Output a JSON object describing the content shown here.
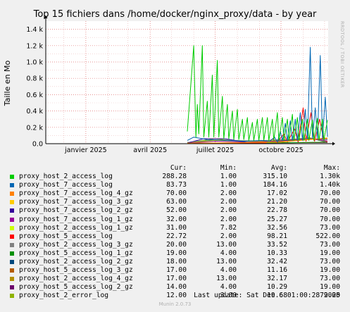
{
  "chart_data": {
    "type": "line",
    "title": "Top 15 fichiers dans /home/docker/nginx_proxy/data - by year",
    "ylabel": "Taille en Mo",
    "side_label": "RRDTOOL / TOBI OETIKER",
    "ylim": [
      0,
      1500
    ],
    "y_ticks": [
      {
        "v": 0,
        "label": "0.0"
      },
      {
        "v": 200,
        "label": "0.2 k"
      },
      {
        "v": 400,
        "label": "0.4 k"
      },
      {
        "v": 600,
        "label": "0.6 k"
      },
      {
        "v": 800,
        "label": "0.8 k"
      },
      {
        "v": 1000,
        "label": "1.0 k"
      },
      {
        "v": 1200,
        "label": "1.2 k"
      },
      {
        "v": 1400,
        "label": "1.4 k"
      }
    ],
    "x_range": [
      "2024-11-06",
      "2025-12-06"
    ],
    "x_ticks": [
      {
        "date": "2025-01-01",
        "label": "janvier 2025"
      },
      {
        "date": "2025-04-01",
        "label": "avril 2025"
      },
      {
        "date": "2025-07-01",
        "label": "juillet 2025"
      },
      {
        "date": "2025-10-01",
        "label": "octobre 2025"
      }
    ],
    "grid": true,
    "series": [
      {
        "name": "proxy_host_2_access_log",
        "color": "#00cc00",
        "cur": "288.28",
        "min": "1.00",
        "avg": "315.10",
        "max": "1.30k",
        "points": [
          [
            "2025-05-23",
            150
          ],
          [
            "2025-06-01",
            1200
          ],
          [
            "2025-06-04",
            80
          ],
          [
            "2025-06-06",
            480
          ],
          [
            "2025-06-08",
            120
          ],
          [
            "2025-06-13",
            1200
          ],
          [
            "2025-06-15",
            80
          ],
          [
            "2025-06-20",
            520
          ],
          [
            "2025-06-22",
            80
          ],
          [
            "2025-06-27",
            840
          ],
          [
            "2025-06-29",
            80
          ],
          [
            "2025-07-04",
            1020
          ],
          [
            "2025-07-06",
            80
          ],
          [
            "2025-07-11",
            580
          ],
          [
            "2025-07-13",
            60
          ],
          [
            "2025-07-18",
            480
          ],
          [
            "2025-07-20",
            60
          ],
          [
            "2025-07-25",
            400
          ],
          [
            "2025-07-27",
            50
          ],
          [
            "2025-08-01",
            420
          ],
          [
            "2025-08-03",
            50
          ],
          [
            "2025-08-08",
            300
          ],
          [
            "2025-08-10",
            50
          ],
          [
            "2025-08-15",
            320
          ],
          [
            "2025-08-17",
            40
          ],
          [
            "2025-08-22",
            260
          ],
          [
            "2025-08-24",
            40
          ],
          [
            "2025-08-29",
            300
          ],
          [
            "2025-08-31",
            40
          ],
          [
            "2025-09-05",
            320
          ],
          [
            "2025-09-07",
            40
          ],
          [
            "2025-09-12",
            320
          ],
          [
            "2025-09-14",
            40
          ],
          [
            "2025-09-19",
            300
          ],
          [
            "2025-09-21",
            40
          ],
          [
            "2025-09-26",
            380
          ],
          [
            "2025-09-28",
            40
          ],
          [
            "2025-10-03",
            320
          ],
          [
            "2025-10-05",
            40
          ],
          [
            "2025-10-10",
            300
          ],
          [
            "2025-10-12",
            40
          ],
          [
            "2025-10-17",
            360
          ],
          [
            "2025-10-19",
            40
          ],
          [
            "2025-10-24",
            320
          ],
          [
            "2025-10-26",
            40
          ],
          [
            "2025-10-31",
            300
          ],
          [
            "2025-11-02",
            40
          ],
          [
            "2025-11-07",
            300
          ],
          [
            "2025-11-09",
            40
          ],
          [
            "2025-11-14",
            290
          ],
          [
            "2025-11-16",
            40
          ],
          [
            "2025-11-21",
            310
          ],
          [
            "2025-11-23",
            40
          ],
          [
            "2025-11-28",
            300
          ],
          [
            "2025-11-30",
            40
          ],
          [
            "2025-12-05",
            288
          ]
        ]
      },
      {
        "name": "proxy_host_7_access_log",
        "color": "#0066b3",
        "cur": "83.73",
        "min": "1.00",
        "avg": "184.16",
        "max": "1.40k",
        "points": [
          [
            "2025-05-23",
            40
          ],
          [
            "2025-06-01",
            80
          ],
          [
            "2025-06-20",
            50
          ],
          [
            "2025-07-15",
            40
          ],
          [
            "2025-08-10",
            30
          ],
          [
            "2025-09-05",
            40
          ],
          [
            "2025-09-15",
            30
          ],
          [
            "2025-09-22",
            80
          ],
          [
            "2025-09-26",
            20
          ],
          [
            "2025-09-30",
            150
          ],
          [
            "2025-10-03",
            40
          ],
          [
            "2025-10-07",
            250
          ],
          [
            "2025-10-10",
            40
          ],
          [
            "2025-10-14",
            280
          ],
          [
            "2025-10-17",
            40
          ],
          [
            "2025-10-21",
            300
          ],
          [
            "2025-10-24",
            40
          ],
          [
            "2025-10-28",
            380
          ],
          [
            "2025-10-31",
            40
          ],
          [
            "2025-11-04",
            420
          ],
          [
            "2025-11-07",
            60
          ],
          [
            "2025-11-11",
            1180
          ],
          [
            "2025-11-14",
            60
          ],
          [
            "2025-11-18",
            440
          ],
          [
            "2025-11-21",
            60
          ],
          [
            "2025-11-25",
            1080
          ],
          [
            "2025-11-28",
            60
          ],
          [
            "2025-12-02",
            570
          ],
          [
            "2025-12-05",
            84
          ]
        ]
      },
      {
        "name": "proxy_host_7_access_log_4_gz",
        "color": "#ff8000",
        "cur": "70.00",
        "min": "2.00",
        "avg": "17.02",
        "max": "70.00",
        "points": [
          [
            "2025-05-23",
            5
          ],
          [
            "2025-08-01",
            10
          ],
          [
            "2025-10-01",
            20
          ],
          [
            "2025-11-10",
            50
          ],
          [
            "2025-12-05",
            70
          ]
        ]
      },
      {
        "name": "proxy_host_7_access_log_3_gz",
        "color": "#ffcc00",
        "cur": "63.00",
        "min": "2.00",
        "avg": "21.20",
        "max": "70.00",
        "points": [
          [
            "2025-05-23",
            5
          ],
          [
            "2025-08-01",
            12
          ],
          [
            "2025-10-01",
            25
          ],
          [
            "2025-11-10",
            55
          ],
          [
            "2025-12-05",
            63
          ]
        ]
      },
      {
        "name": "proxy_host_7_access_log_2_gz",
        "color": "#330099",
        "cur": "52.00",
        "min": "2.00",
        "avg": "22.78",
        "max": "70.00",
        "points": [
          [
            "2025-05-23",
            8
          ],
          [
            "2025-06-15",
            60
          ],
          [
            "2025-07-15",
            60
          ],
          [
            "2025-08-15",
            15
          ],
          [
            "2025-10-01",
            30
          ],
          [
            "2025-11-10",
            60
          ],
          [
            "2025-12-05",
            52
          ]
        ]
      },
      {
        "name": "proxy_host_7_access_log_1_gz",
        "color": "#990099",
        "cur": "32.00",
        "min": "2.00",
        "avg": "25.27",
        "max": "70.00",
        "points": [
          [
            "2025-05-23",
            8
          ],
          [
            "2025-07-01",
            30
          ],
          [
            "2025-08-15",
            20
          ],
          [
            "2025-10-01",
            35
          ],
          [
            "2025-11-10",
            65
          ],
          [
            "2025-12-05",
            32
          ]
        ]
      },
      {
        "name": "proxy_host_2_access_log_1_gz",
        "color": "#ccff00",
        "cur": "31.00",
        "min": "7.82",
        "avg": "32.56",
        "max": "73.00",
        "points": [
          [
            "2025-05-23",
            10
          ],
          [
            "2025-07-01",
            40
          ],
          [
            "2025-08-15",
            30
          ],
          [
            "2025-10-01",
            40
          ],
          [
            "2025-11-10",
            70
          ],
          [
            "2025-12-05",
            31
          ]
        ]
      },
      {
        "name": "proxy_host_5_access_log",
        "color": "#ff0000",
        "cur": "22.72",
        "min": "2.00",
        "avg": "98.21",
        "max": "522.00",
        "points": [
          [
            "2025-05-23",
            5
          ],
          [
            "2025-09-10",
            10
          ],
          [
            "2025-09-20",
            60
          ],
          [
            "2025-09-25",
            10
          ],
          [
            "2025-10-05",
            120
          ],
          [
            "2025-10-10",
            20
          ],
          [
            "2025-10-20",
            180
          ],
          [
            "2025-10-25",
            20
          ],
          [
            "2025-11-01",
            440
          ],
          [
            "2025-11-05",
            30
          ],
          [
            "2025-11-12",
            380
          ],
          [
            "2025-11-17",
            30
          ],
          [
            "2025-11-24",
            300
          ],
          [
            "2025-11-30",
            40
          ],
          [
            "2025-12-05",
            23
          ]
        ]
      },
      {
        "name": "proxy_host_2_access_log_3_gz",
        "color": "#808080",
        "cur": "20.00",
        "min": "13.00",
        "avg": "33.52",
        "max": "73.00",
        "points": [
          [
            "2025-05-23",
            15
          ],
          [
            "2025-07-01",
            40
          ],
          [
            "2025-09-01",
            35
          ],
          [
            "2025-11-10",
            70
          ],
          [
            "2025-12-05",
            20
          ]
        ]
      },
      {
        "name": "proxy_host_5_access_log_1_gz",
        "color": "#008f00",
        "cur": "19.00",
        "min": "4.00",
        "avg": "10.33",
        "max": "19.00",
        "points": [
          [
            "2025-05-23",
            5
          ],
          [
            "2025-08-01",
            8
          ],
          [
            "2025-10-15",
            12
          ],
          [
            "2025-12-05",
            19
          ]
        ]
      },
      {
        "name": "proxy_host_2_access_log_2_gz",
        "color": "#00487d",
        "cur": "18.00",
        "min": "13.00",
        "avg": "32.42",
        "max": "73.00",
        "points": [
          [
            "2025-05-23",
            15
          ],
          [
            "2025-07-01",
            45
          ],
          [
            "2025-09-01",
            30
          ],
          [
            "2025-11-10",
            70
          ],
          [
            "2025-12-05",
            18
          ]
        ]
      },
      {
        "name": "proxy_host_5_access_log_3_gz",
        "color": "#b35a00",
        "cur": "17.00",
        "min": "4.00",
        "avg": "11.16",
        "max": "19.00",
        "points": [
          [
            "2025-05-23",
            5
          ],
          [
            "2025-08-01",
            9
          ],
          [
            "2025-10-15",
            13
          ],
          [
            "2025-12-05",
            17
          ]
        ]
      },
      {
        "name": "proxy_host_2_access_log_4_gz",
        "color": "#b38f00",
        "cur": "17.00",
        "min": "13.00",
        "avg": "32.17",
        "max": "73.00",
        "points": [
          [
            "2025-05-23",
            15
          ],
          [
            "2025-07-01",
            40
          ],
          [
            "2025-09-01",
            30
          ],
          [
            "2025-11-10",
            68
          ],
          [
            "2025-12-05",
            17
          ]
        ]
      },
      {
        "name": "proxy_host_5_access_log_2_gz",
        "color": "#6b006b",
        "cur": "14.00",
        "min": "4.00",
        "avg": "10.29",
        "max": "19.00",
        "points": [
          [
            "2025-05-23",
            5
          ],
          [
            "2025-08-01",
            8
          ],
          [
            "2025-10-15",
            12
          ],
          [
            "2025-12-05",
            14
          ]
        ]
      },
      {
        "name": "proxy_host_2_error_log",
        "color": "#8fb300",
        "cur": "12.00",
        "min": "3.00",
        "avg": "19.68",
        "max": "79.00",
        "points": [
          [
            "2025-05-23",
            10
          ],
          [
            "2025-07-01",
            60
          ],
          [
            "2025-08-15",
            15
          ],
          [
            "2025-10-01",
            25
          ],
          [
            "2025-11-10",
            75
          ],
          [
            "2025-12-05",
            12
          ]
        ]
      }
    ]
  },
  "legend": {
    "headers": {
      "cur": "Cur:",
      "min": "Min:",
      "avg": "Avg:",
      "max": "Max:"
    }
  },
  "footer": {
    "last_update": "Last update: Sat Dec  6 01:00:28 2025",
    "version": "Munin 2.0.73"
  }
}
